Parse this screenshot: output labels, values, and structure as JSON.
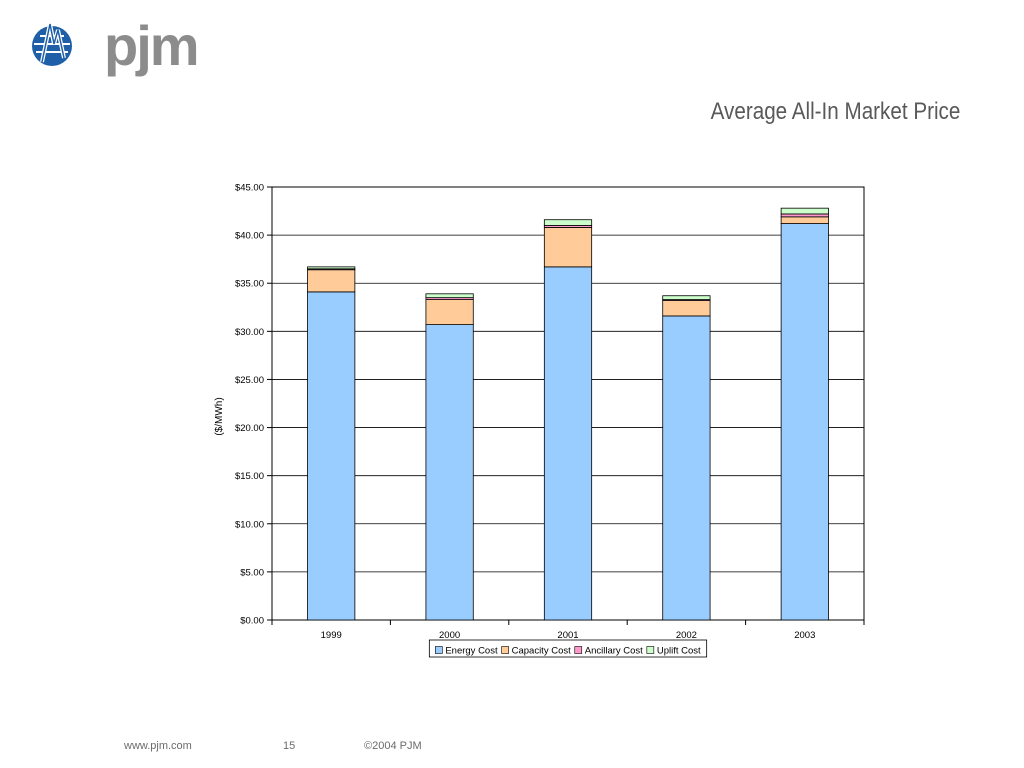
{
  "header": {
    "logo_text": "pjm",
    "title": "Average All-In Market Price"
  },
  "footer": {
    "url": "www.pjm.com",
    "page_number": "15",
    "copyright": "©2004 PJM"
  },
  "colors": {
    "logo_blue": "#1f5fa8",
    "logo_gray": "#8c8c8c",
    "energy": "#99ccff",
    "capacity": "#ffcc99",
    "ancillary": "#ff99cc",
    "uplift": "#ccffcc"
  },
  "chart_data": {
    "type": "bar",
    "stacked": true,
    "title": "",
    "xlabel": "",
    "ylabel": "($/MWh)",
    "ylim": [
      0,
      45
    ],
    "y_ticks": [
      0,
      5,
      10,
      15,
      20,
      25,
      30,
      35,
      40,
      45
    ],
    "y_tick_labels": [
      "$0.00",
      "$5.00",
      "$10.00",
      "$15.00",
      "$20.00",
      "$25.00",
      "$30.00",
      "$35.00",
      "$40.00",
      "$45.00"
    ],
    "grid": true,
    "legend_position": "bottom",
    "categories": [
      "1999",
      "2000",
      "2001",
      "2002",
      "2003"
    ],
    "series": [
      {
        "name": "Energy Cost",
        "color": "#99ccff",
        "values": [
          34.1,
          30.7,
          36.7,
          31.6,
          41.2
        ]
      },
      {
        "name": "Capacity Cost",
        "color": "#ffcc99",
        "values": [
          2.3,
          2.6,
          4.1,
          1.6,
          0.7
        ]
      },
      {
        "name": "Ancillary Cost",
        "color": "#ff99cc",
        "values": [
          0.1,
          0.2,
          0.2,
          0.1,
          0.3
        ]
      },
      {
        "name": "Uplift Cost",
        "color": "#ccffcc",
        "values": [
          0.2,
          0.4,
          0.6,
          0.4,
          0.6
        ]
      }
    ]
  }
}
